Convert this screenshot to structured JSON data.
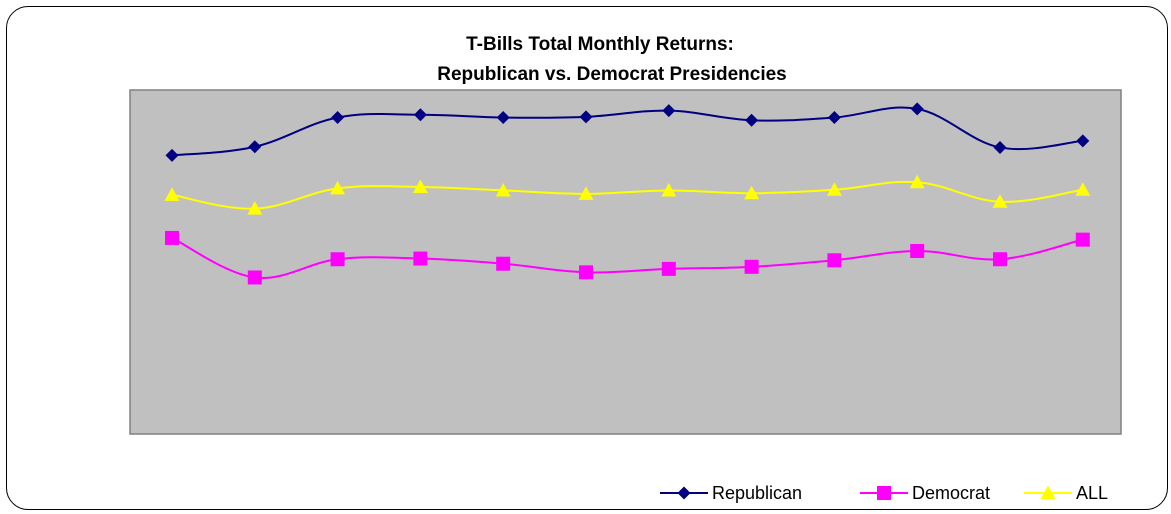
{
  "chart_data": {
    "type": "line",
    "title_line1": "T-Bills Total Monthly Returns:",
    "title_line2": "Republican vs. Democrat Presidencies",
    "xlabel": "",
    "ylabel": "",
    "x": [
      1,
      2,
      3,
      4,
      5,
      6,
      7,
      8,
      9,
      10,
      11,
      12
    ],
    "ylim": [
      0,
      1
    ],
    "grid": false,
    "legend_position": "bottom-right",
    "plot_background": "#c0c0c0",
    "series": [
      {
        "name": "Republican",
        "color": "#000080",
        "marker": "diamond",
        "values": [
          0.81,
          0.835,
          0.92,
          0.928,
          0.92,
          0.922,
          0.94,
          0.912,
          0.92,
          0.945,
          0.833,
          0.852
        ]
      },
      {
        "name": "Democrat",
        "color": "#ff00ff",
        "marker": "square",
        "values": [
          0.57,
          0.455,
          0.508,
          0.51,
          0.495,
          0.47,
          0.48,
          0.486,
          0.505,
          0.532,
          0.508,
          0.565
        ]
      },
      {
        "name": "ALL",
        "color": "#ffff00",
        "marker": "triangle",
        "values": [
          0.695,
          0.655,
          0.714,
          0.718,
          0.708,
          0.698,
          0.708,
          0.7,
          0.71,
          0.732,
          0.675,
          0.71
        ]
      }
    ]
  }
}
